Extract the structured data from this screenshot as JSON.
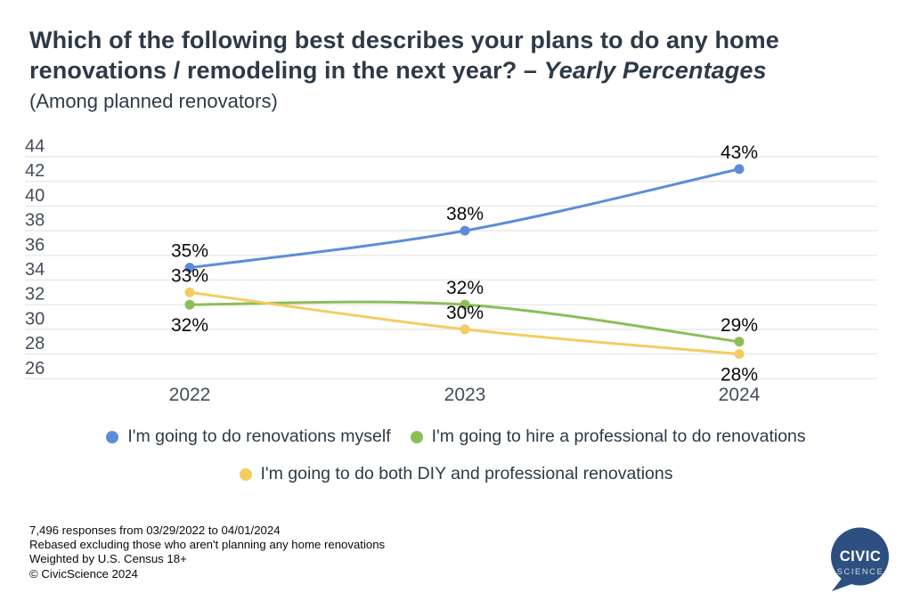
{
  "title": {
    "line1": "Which of the following best describes your plans to do any home",
    "line2_regular": "renovations / remodeling in the next year? – ",
    "line2_italic": "Yearly Percentages",
    "subtitle": "(Among planned renovators)"
  },
  "chart_data": {
    "type": "line",
    "title": "Which of the following best describes your plans to do any home renovations / remodeling in the next year? – Yearly Percentages",
    "subtitle": "(Among planned renovators)",
    "x": [
      "2022",
      "2023",
      "2024"
    ],
    "ylabel": "",
    "xlabel": "",
    "ylim": [
      26,
      44
    ],
    "yticks": [
      44,
      42,
      40,
      38,
      36,
      34,
      32,
      30,
      28,
      26
    ],
    "grid": true,
    "legend_position": "bottom",
    "series": [
      {
        "name": "I'm going to do renovations myself",
        "color": "#5d8cd9",
        "values": [
          35,
          38,
          43
        ],
        "point_labels": [
          "35%",
          "38%",
          "43%"
        ],
        "label_positions": [
          "above",
          "above",
          "above"
        ]
      },
      {
        "name": "I'm going to hire a professional to do renovations",
        "color": "#8cbe57",
        "values": [
          32,
          32,
          29
        ],
        "point_labels": [
          "32%",
          "32%",
          "29%"
        ],
        "label_positions": [
          "below",
          "above",
          "above"
        ]
      },
      {
        "name": "I'm going to do both DIY and professional renovations",
        "color": "#f4cd60",
        "values": [
          33,
          30,
          28
        ],
        "point_labels": [
          "33%",
          "30%",
          "28%"
        ],
        "label_positions": [
          "above",
          "above",
          "below"
        ]
      }
    ]
  },
  "style": {
    "grid_color": "#e8e8e8",
    "axis_label_color": "#454d59",
    "value_label_color": "#0a0a0a",
    "logo_blue": "#2e5080"
  },
  "footer": {
    "lines": [
      "7,496 responses from 03/29/2022 to 04/01/2024",
      "Rebased excluding those who aren't planning any home renovations",
      "Weighted by U.S. Census 18+",
      "© CivicScience 2024"
    ]
  },
  "logo": {
    "line1": "CIVIC",
    "line2": "SCIENCE"
  }
}
